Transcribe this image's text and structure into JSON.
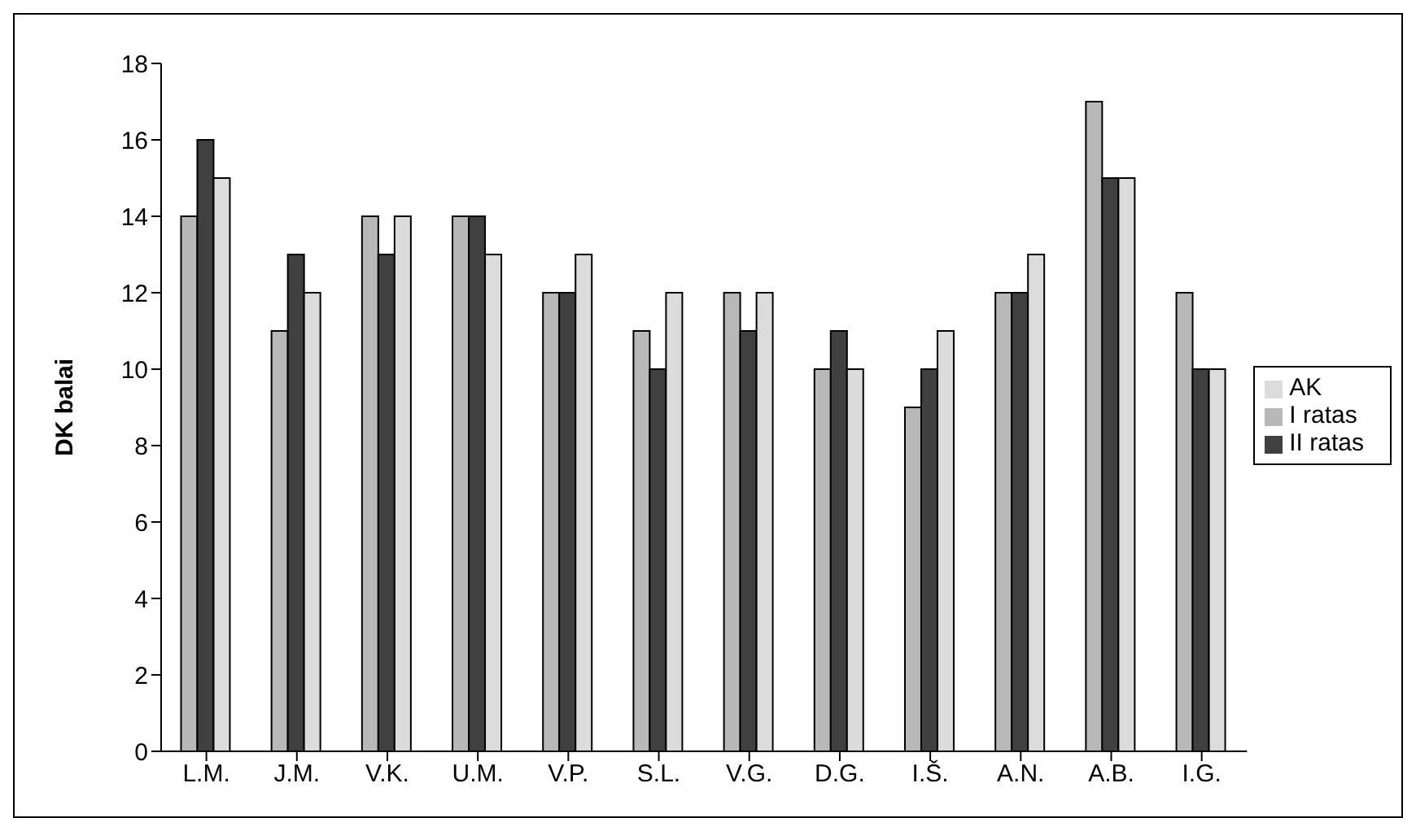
{
  "chart_data": {
    "type": "bar",
    "ylabel": "DK balai",
    "categories": [
      "L.M.",
      "J.M.",
      "V.K.",
      "U.M.",
      "V.P.",
      "S.L.",
      "V.G.",
      "D.G.",
      "I.Š.",
      "A.N.",
      "A.B.",
      "I.G."
    ],
    "series": [
      {
        "name": "I ratas",
        "color": "#b8b8b8",
        "values": [
          14,
          11,
          14,
          14,
          12,
          11,
          12,
          10,
          9,
          12,
          17,
          12
        ]
      },
      {
        "name": "II ratas",
        "color": "#404040",
        "values": [
          16,
          13,
          13,
          14,
          12,
          10,
          11,
          11,
          10,
          12,
          15,
          10
        ]
      },
      {
        "name": "AK",
        "color": "#dcdcdc",
        "values": [
          15,
          12,
          14,
          13,
          13,
          12,
          12,
          10,
          11,
          13,
          15,
          10
        ]
      }
    ],
    "ylim": [
      0,
      18
    ],
    "yticks": [
      0,
      2,
      4,
      6,
      8,
      10,
      12,
      14,
      16,
      18
    ],
    "grid": false,
    "legend": "right"
  }
}
